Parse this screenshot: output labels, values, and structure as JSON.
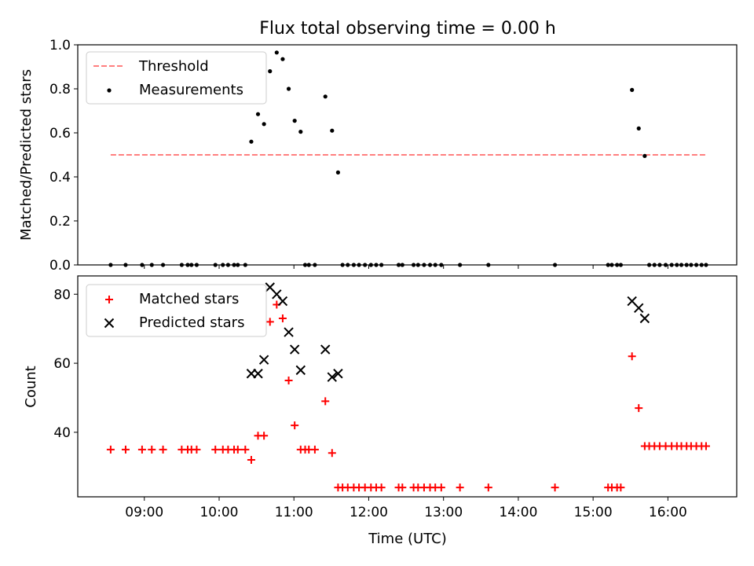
{
  "chart_data": {
    "title": "Flux total observing time = 0.00 h",
    "xlabel": "Time (UTC)",
    "xlim_hours": [
      8.11,
      16.92
    ],
    "x_ticks": [
      {
        "value": 9,
        "label": "09:00"
      },
      {
        "value": 10,
        "label": "10:00"
      },
      {
        "value": 11,
        "label": "11:00"
      },
      {
        "value": 12,
        "label": "12:00"
      },
      {
        "value": 13,
        "label": "13:00"
      },
      {
        "value": 14,
        "label": "14:00"
      },
      {
        "value": 15,
        "label": "15:00"
      },
      {
        "value": 16,
        "label": "16:00"
      }
    ],
    "top": {
      "type": "scatter",
      "ylabel": "Matched/Predicted stars",
      "ylim": [
        0,
        1.0
      ],
      "y_ticks": [
        "0.0",
        "0.2",
        "0.4",
        "0.6",
        "0.8",
        "1.0"
      ],
      "threshold": {
        "value": 0.5,
        "x_range": [
          8.55,
          16.5
        ],
        "color": "#ff7f7f",
        "name": "Threshold"
      },
      "measurements_name": "Measurements",
      "zero_x": [
        8.55,
        8.75,
        8.97,
        9.1,
        9.25,
        9.5,
        9.58,
        9.63,
        9.7,
        9.95,
        10.05,
        10.12,
        10.2,
        10.25,
        10.35,
        11.15,
        11.2,
        11.28,
        11.65,
        11.72,
        11.8,
        11.87,
        11.95,
        12.03,
        12.1,
        12.17,
        12.4,
        12.45,
        12.6,
        12.66,
        12.74,
        12.82,
        12.89,
        12.97,
        13.22,
        13.6,
        14.49,
        15.2,
        15.25,
        15.32,
        15.37,
        15.75,
        15.82,
        15.89,
        15.97,
        16.05,
        16.12,
        16.18,
        16.25,
        16.31,
        16.38,
        16.45,
        16.51
      ],
      "points": [
        {
          "x": 10.43,
          "y": 0.56
        },
        {
          "x": 10.52,
          "y": 0.685
        },
        {
          "x": 10.6,
          "y": 0.64
        },
        {
          "x": 10.68,
          "y": 0.88
        },
        {
          "x": 10.77,
          "y": 0.965
        },
        {
          "x": 10.85,
          "y": 0.935
        },
        {
          "x": 10.93,
          "y": 0.8
        },
        {
          "x": 11.01,
          "y": 0.655
        },
        {
          "x": 11.09,
          "y": 0.605
        },
        {
          "x": 11.42,
          "y": 0.765
        },
        {
          "x": 11.51,
          "y": 0.61
        },
        {
          "x": 11.59,
          "y": 0.42
        },
        {
          "x": 15.52,
          "y": 0.795
        },
        {
          "x": 15.61,
          "y": 0.62
        },
        {
          "x": 15.69,
          "y": 0.495
        }
      ]
    },
    "bottom": {
      "type": "scatter",
      "ylabel": "Count",
      "ylim": [
        21.3,
        85.3
      ],
      "y_ticks": [
        40,
        60,
        80
      ],
      "series": [
        {
          "name": "Matched stars",
          "marker": "plus",
          "color": "#ff0000",
          "points": [
            {
              "x": 8.55,
              "y": 35
            },
            {
              "x": 8.75,
              "y": 35
            },
            {
              "x": 8.97,
              "y": 35
            },
            {
              "x": 9.1,
              "y": 35
            },
            {
              "x": 9.25,
              "y": 35
            },
            {
              "x": 9.5,
              "y": 35
            },
            {
              "x": 9.58,
              "y": 35
            },
            {
              "x": 9.63,
              "y": 35
            },
            {
              "x": 9.7,
              "y": 35
            },
            {
              "x": 9.95,
              "y": 35
            },
            {
              "x": 10.05,
              "y": 35
            },
            {
              "x": 10.12,
              "y": 35
            },
            {
              "x": 10.2,
              "y": 35
            },
            {
              "x": 10.25,
              "y": 35
            },
            {
              "x": 10.35,
              "y": 35
            },
            {
              "x": 10.43,
              "y": 32
            },
            {
              "x": 10.52,
              "y": 39
            },
            {
              "x": 10.6,
              "y": 39
            },
            {
              "x": 10.68,
              "y": 72
            },
            {
              "x": 10.77,
              "y": 77
            },
            {
              "x": 10.85,
              "y": 73
            },
            {
              "x": 10.93,
              "y": 55
            },
            {
              "x": 11.01,
              "y": 42
            },
            {
              "x": 11.09,
              "y": 35
            },
            {
              "x": 11.15,
              "y": 35
            },
            {
              "x": 11.2,
              "y": 35
            },
            {
              "x": 11.28,
              "y": 35
            },
            {
              "x": 11.42,
              "y": 49
            },
            {
              "x": 11.51,
              "y": 34
            },
            {
              "x": 11.59,
              "y": 24
            },
            {
              "x": 11.65,
              "y": 24
            },
            {
              "x": 11.72,
              "y": 24
            },
            {
              "x": 11.8,
              "y": 24
            },
            {
              "x": 11.87,
              "y": 24
            },
            {
              "x": 11.95,
              "y": 24
            },
            {
              "x": 12.03,
              "y": 24
            },
            {
              "x": 12.1,
              "y": 24
            },
            {
              "x": 12.17,
              "y": 24
            },
            {
              "x": 12.4,
              "y": 24
            },
            {
              "x": 12.45,
              "y": 24
            },
            {
              "x": 12.6,
              "y": 24
            },
            {
              "x": 12.66,
              "y": 24
            },
            {
              "x": 12.74,
              "y": 24
            },
            {
              "x": 12.82,
              "y": 24
            },
            {
              "x": 12.89,
              "y": 24
            },
            {
              "x": 12.97,
              "y": 24
            },
            {
              "x": 13.22,
              "y": 24
            },
            {
              "x": 13.6,
              "y": 24
            },
            {
              "x": 14.49,
              "y": 24
            },
            {
              "x": 15.2,
              "y": 24
            },
            {
              "x": 15.25,
              "y": 24
            },
            {
              "x": 15.32,
              "y": 24
            },
            {
              "x": 15.37,
              "y": 24
            },
            {
              "x": 15.52,
              "y": 62
            },
            {
              "x": 15.61,
              "y": 47
            },
            {
              "x": 15.69,
              "y": 36
            },
            {
              "x": 15.75,
              "y": 36
            },
            {
              "x": 15.82,
              "y": 36
            },
            {
              "x": 15.89,
              "y": 36
            },
            {
              "x": 15.97,
              "y": 36
            },
            {
              "x": 16.05,
              "y": 36
            },
            {
              "x": 16.12,
              "y": 36
            },
            {
              "x": 16.18,
              "y": 36
            },
            {
              "x": 16.25,
              "y": 36
            },
            {
              "x": 16.31,
              "y": 36
            },
            {
              "x": 16.38,
              "y": 36
            },
            {
              "x": 16.45,
              "y": 36
            },
            {
              "x": 16.51,
              "y": 36
            }
          ]
        },
        {
          "name": "Predicted stars",
          "marker": "x",
          "color": "#000000",
          "points": [
            {
              "x": 10.43,
              "y": 57
            },
            {
              "x": 10.52,
              "y": 57
            },
            {
              "x": 10.6,
              "y": 61
            },
            {
              "x": 10.68,
              "y": 82
            },
            {
              "x": 10.77,
              "y": 80
            },
            {
              "x": 10.85,
              "y": 78
            },
            {
              "x": 10.93,
              "y": 69
            },
            {
              "x": 11.01,
              "y": 64
            },
            {
              "x": 11.09,
              "y": 58
            },
            {
              "x": 11.42,
              "y": 64
            },
            {
              "x": 11.51,
              "y": 56
            },
            {
              "x": 11.59,
              "y": 57
            },
            {
              "x": 15.52,
              "y": 78
            },
            {
              "x": 15.61,
              "y": 76
            },
            {
              "x": 15.69,
              "y": 73
            }
          ]
        }
      ]
    }
  }
}
